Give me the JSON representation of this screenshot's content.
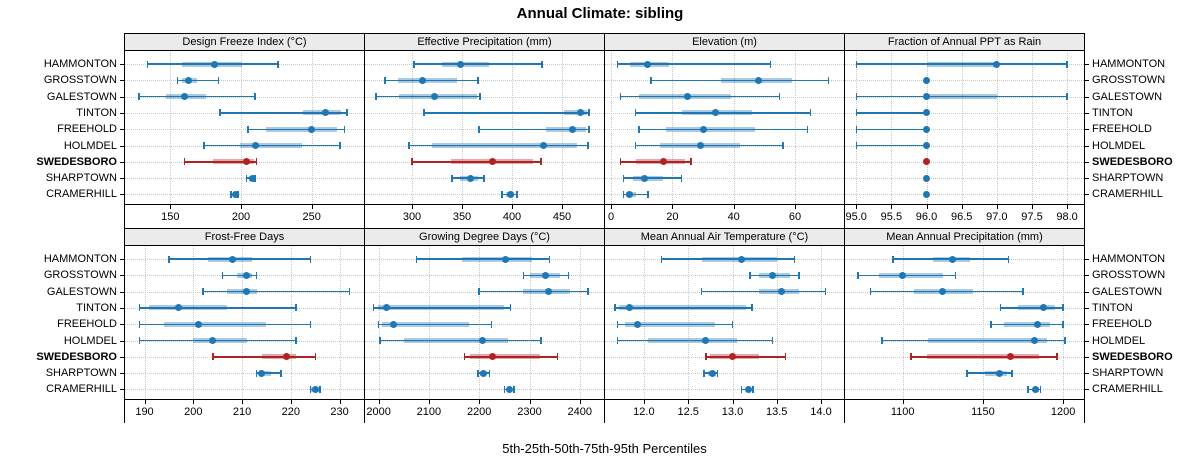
{
  "title": "Annual Climate: sibling",
  "footer": "5th-25th-50th-75th-95th Percentiles",
  "towns": [
    "HAMMONTON",
    "GROSSTOWN",
    "GALESTOWN",
    "TINTON",
    "FREEHOLD",
    "HOLMDEL",
    "SWEDESBORO",
    "SHARPTOWN",
    "CRAMERHILL"
  ],
  "highlight_town": "SWEDESBORO",
  "colors": {
    "accent_blue": "#1f77b4",
    "accent_blue_band": "rgba(31,119,180,0.38)",
    "highlight_red": "#b22222",
    "highlight_red_band": "rgba(178,34,34,0.38)",
    "grid": "#c8c8c8",
    "header_bg": "#ebebeb",
    "border": "#000000"
  },
  "chart_data": {
    "type": "dot-interval percentile plot (5th-25th-50th-75th-95th)",
    "layout": "2 rows x 4 columns of panels; town names listed on both left and right sides; SWEDESBORO row highlighted in red bold",
    "percentiles": [
      "5th",
      "25th",
      "50th",
      "75th",
      "95th"
    ],
    "rows": [
      "HAMMONTON",
      "GROSSTOWN",
      "GALESTOWN",
      "TINTON",
      "FREEHOLD",
      "HOLMDEL",
      "SWEDESBORO",
      "SHARPTOWN",
      "CRAMERHILL"
    ],
    "highlight_row": "SWEDESBORO",
    "panels": [
      {
        "title": "Design Freeze Index (°C)",
        "xlim": [
          118,
          287
        ],
        "ticks": [
          150,
          200,
          250
        ],
        "tick_labels": [
          "150",
          "200",
          "250"
        ],
        "series": [
          {
            "name": "HAMMONTON",
            "p": [
              134,
              158,
              181,
              201,
              226
            ]
          },
          {
            "name": "GROSSTOWN",
            "p": [
              155,
              158,
              163,
              169,
              184
            ]
          },
          {
            "name": "GALESTOWN",
            "p": [
              128,
              147,
              160,
              175,
              210
            ]
          },
          {
            "name": "TINTON",
            "p": [
              185,
              244,
              260,
              271,
              275
            ]
          },
          {
            "name": "FREEHOLD",
            "p": [
              205,
              218,
              250,
              268,
              273
            ]
          },
          {
            "name": "HOLMDEL",
            "p": [
              174,
              199,
              210,
              243,
              270
            ]
          },
          {
            "name": "SWEDESBORO",
            "p": [
              160,
              180,
              204,
              209,
              211
            ]
          },
          {
            "name": "SHARPTOWN",
            "p": [
              204,
              206,
              208,
              209,
              210
            ]
          },
          {
            "name": "CRAMERHILL",
            "p": [
              193,
              194,
              196,
              197,
              198
            ]
          }
        ]
      },
      {
        "title": "Effective Precipitation (mm)",
        "xlim": [
          253,
          492
        ],
        "ticks": [
          300,
          350,
          400,
          450
        ],
        "tick_labels": [
          "300",
          "350",
          "400",
          "450"
        ],
        "series": [
          {
            "name": "HAMMONTON",
            "p": [
              302,
              330,
              348,
              377,
              430
            ]
          },
          {
            "name": "GROSSTOWN",
            "p": [
              273,
              286,
              310,
              345,
              366
            ]
          },
          {
            "name": "GALESTOWN",
            "p": [
              264,
              287,
              322,
              365,
              368
            ]
          },
          {
            "name": "TINTON",
            "p": [
              312,
              452,
              468,
              475,
              477
            ]
          },
          {
            "name": "FREEHOLD",
            "p": [
              367,
              434,
              460,
              474,
              477
            ]
          },
          {
            "name": "HOLMDEL",
            "p": [
              297,
              320,
              431,
              465,
              476
            ]
          },
          {
            "name": "SWEDESBORO",
            "p": [
              300,
              339,
              380,
              421,
              429
            ]
          },
          {
            "name": "SHARPTOWN",
            "p": [
              340,
              348,
              358,
              366,
              372
            ]
          },
          {
            "name": "CRAMERHILL",
            "p": [
              390,
              394,
              398,
              402,
              405
            ]
          }
        ]
      },
      {
        "title": "Elevation (m)",
        "xlim": [
          -2,
          76
        ],
        "ticks": [
          0,
          20,
          40,
          60
        ],
        "tick_labels": [
          "0",
          "20",
          "40",
          "60"
        ],
        "series": [
          {
            "name": "HAMMONTON",
            "p": [
              2,
              6,
              12,
              19,
              52
            ]
          },
          {
            "name": "GROSSTOWN",
            "p": [
              13,
              36,
              48,
              59,
              71
            ]
          },
          {
            "name": "GALESTOWN",
            "p": [
              3,
              9,
              25,
              39,
              55
            ]
          },
          {
            "name": "TINTON",
            "p": [
              8,
              23,
              34,
              46,
              65
            ]
          },
          {
            "name": "FREEHOLD",
            "p": [
              9,
              18,
              30,
              47,
              64
            ]
          },
          {
            "name": "HOLMDEL",
            "p": [
              8,
              16,
              29,
              42,
              56
            ]
          },
          {
            "name": "SWEDESBORO",
            "p": [
              3,
              8,
              17,
              24,
              26
            ]
          },
          {
            "name": "SHARPTOWN",
            "p": [
              4,
              7,
              11,
              17,
              23
            ]
          },
          {
            "name": "CRAMERHILL",
            "p": [
              4,
              5,
              6,
              8,
              12
            ]
          }
        ]
      },
      {
        "title": "Fraction of Annual PPT as Rain",
        "xlim": [
          94.84,
          98.24
        ],
        "ticks": [
          95.0,
          95.5,
          96.0,
          96.5,
          97.0,
          97.5,
          98.0
        ],
        "tick_labels": [
          "95.0",
          "95.5",
          "96.0",
          "96.5",
          "97.0",
          "97.5",
          "98.0"
        ],
        "series": [
          {
            "name": "HAMMONTON",
            "p": [
              95,
              96,
              97,
              97,
              98
            ]
          },
          {
            "name": "GROSSTOWN",
            "p": [
              96,
              96,
              96,
              96,
              96
            ]
          },
          {
            "name": "GALESTOWN",
            "p": [
              95,
              96,
              96,
              97,
              98
            ]
          },
          {
            "name": "TINTON",
            "p": [
              95,
              96,
              96,
              96,
              96
            ]
          },
          {
            "name": "FREEHOLD",
            "p": [
              95,
              96,
              96,
              96,
              96
            ]
          },
          {
            "name": "HOLMDEL",
            "p": [
              95,
              96,
              96,
              96,
              96
            ]
          },
          {
            "name": "SWEDESBORO",
            "p": [
              96,
              96,
              96,
              96,
              96
            ]
          },
          {
            "name": "SHARPTOWN",
            "p": [
              96,
              96,
              96,
              96,
              96
            ]
          },
          {
            "name": "CRAMERHILL",
            "p": [
              96,
              96,
              96,
              96,
              96
            ]
          }
        ]
      },
      {
        "title": "Frost-Free Days",
        "xlim": [
          186,
          235
        ],
        "ticks": [
          190,
          200,
          210,
          220,
          230
        ],
        "tick_labels": [
          "190",
          "200",
          "210",
          "220",
          "230"
        ],
        "series": [
          {
            "name": "HAMMONTON",
            "p": [
              195,
              203,
              208,
              212,
              224
            ]
          },
          {
            "name": "GROSSTOWN",
            "p": [
              206,
              209,
              211,
              212,
              213
            ]
          },
          {
            "name": "GALESTOWN",
            "p": [
              202,
              207,
              211,
              213,
              232
            ]
          },
          {
            "name": "TINTON",
            "p": [
              189,
              191,
              197,
              207,
              221
            ]
          },
          {
            "name": "FREEHOLD",
            "p": [
              189,
              194,
              201,
              215,
              224
            ]
          },
          {
            "name": "HOLMDEL",
            "p": [
              189,
              200,
              204,
              211,
              221
            ]
          },
          {
            "name": "SWEDESBORO",
            "p": [
              204,
              214,
              219,
              221,
              225
            ]
          },
          {
            "name": "SHARPTOWN",
            "p": [
              213,
              214,
              214,
              216,
              218
            ]
          },
          {
            "name": "CRAMERHILL",
            "p": [
              224,
              224,
              225,
              226,
              226
            ]
          }
        ]
      },
      {
        "title": "Growing Degree Days (°C)",
        "xlim": [
          1973,
          2448
        ],
        "ticks": [
          2000,
          2100,
          2200,
          2300,
          2400
        ],
        "tick_labels": [
          "2000",
          "2100",
          "2200",
          "2300",
          "2400"
        ],
        "series": [
          {
            "name": "HAMMONTON",
            "p": [
              2075,
              2165,
              2253,
              2305,
              2340
            ]
          },
          {
            "name": "GROSSTOWN",
            "p": [
              2288,
              2300,
              2331,
              2361,
              2377
            ]
          },
          {
            "name": "GALESTOWN",
            "p": [
              2199,
              2286,
              2337,
              2381,
              2416
            ]
          },
          {
            "name": "TINTON",
            "p": [
              1990,
              1998,
              2015,
              2250,
              2262
            ]
          },
          {
            "name": "FREEHOLD",
            "p": [
              2000,
              2007,
              2029,
              2180,
              2224
            ]
          },
          {
            "name": "HOLMDEL",
            "p": [
              2003,
              2050,
              2207,
              2257,
              2323
            ]
          },
          {
            "name": "SWEDESBORO",
            "p": [
              2171,
              2181,
              2227,
              2320,
              2355
            ]
          },
          {
            "name": "SHARPTOWN",
            "p": [
              2197,
              2202,
              2208,
              2213,
              2220
            ]
          },
          {
            "name": "CRAMERHILL",
            "p": [
              2250,
              2255,
              2260,
              2264,
              2269
            ]
          }
        ]
      },
      {
        "title": "Mean Annual Air Temperature (°C)",
        "xlim": [
          11.56,
          14.26
        ],
        "ticks": [
          12.0,
          12.5,
          13.0,
          13.5,
          14.0
        ],
        "tick_labels": [
          "12.0",
          "12.5",
          "13.0",
          "13.5",
          "14.0"
        ],
        "series": [
          {
            "name": "HAMMONTON",
            "p": [
              12.2,
              12.65,
              13.1,
              13.5,
              13.7
            ]
          },
          {
            "name": "GROSSTOWN",
            "p": [
              13.2,
              13.3,
              13.45,
              13.65,
              13.75
            ]
          },
          {
            "name": "GALESTOWN",
            "p": [
              12.65,
              13.3,
              13.55,
              13.75,
              14.05
            ]
          },
          {
            "name": "TINTON",
            "p": [
              11.67,
              11.72,
              11.84,
              13.15,
              13.22
            ]
          },
          {
            "name": "FREEHOLD",
            "p": [
              11.7,
              11.78,
              11.93,
              12.8,
              13.0
            ]
          },
          {
            "name": "HOLMDEL",
            "p": [
              11.7,
              12.05,
              12.7,
              13.05,
              13.45
            ]
          },
          {
            "name": "SWEDESBORO",
            "p": [
              12.7,
              12.75,
              13.0,
              13.3,
              13.6
            ]
          },
          {
            "name": "SHARPTOWN",
            "p": [
              12.68,
              12.72,
              12.77,
              12.8,
              12.83
            ]
          },
          {
            "name": "CRAMERHILL",
            "p": [
              13.1,
              13.15,
              13.18,
              13.21,
              13.23
            ]
          }
        ]
      },
      {
        "title": "Mean Annual Precipitation (mm)",
        "xlim": [
          1064,
          1213
        ],
        "ticks": [
          1100,
          1150,
          1200
        ],
        "tick_labels": [
          "1100",
          "1150",
          "1200"
        ],
        "series": [
          {
            "name": "HAMMONTON",
            "p": [
              1094,
              1119,
              1131,
              1142,
              1166
            ]
          },
          {
            "name": "GROSSTOWN",
            "p": [
              1072,
              1085,
              1100,
              1125,
              1133
            ]
          },
          {
            "name": "GALESTOWN",
            "p": [
              1080,
              1107,
              1125,
              1144,
              1175
            ]
          },
          {
            "name": "TINTON",
            "p": [
              1161,
              1172,
              1188,
              1195,
              1200
            ]
          },
          {
            "name": "FREEHOLD",
            "p": [
              1155,
              1163,
              1184,
              1192,
              1200
            ]
          },
          {
            "name": "HOLMDEL",
            "p": [
              1087,
              1116,
              1182,
              1190,
              1201
            ]
          },
          {
            "name": "SWEDESBORO",
            "p": [
              1105,
              1115,
              1167,
              1185,
              1196
            ]
          },
          {
            "name": "SHARPTOWN",
            "p": [
              1140,
              1151,
              1160,
              1165,
              1168
            ]
          },
          {
            "name": "CRAMERHILL",
            "p": [
              1178,
              1181,
              1183,
              1185,
              1186
            ]
          }
        ]
      }
    ]
  }
}
